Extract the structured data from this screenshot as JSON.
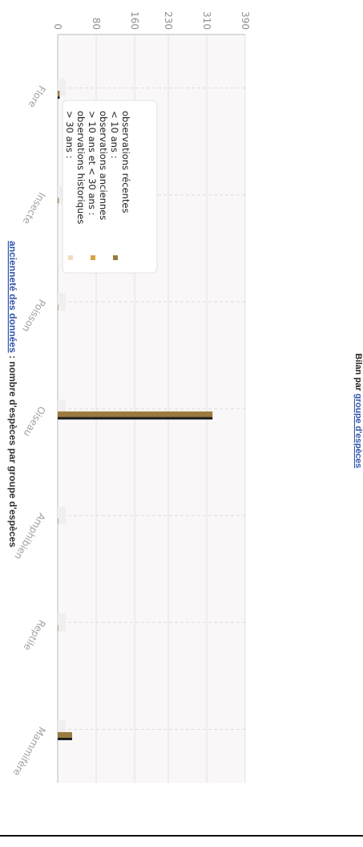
{
  "chart_title": {
    "link": "ancienneté des données",
    "rest": " : nombre d'espèces par groupe d'espèces"
  },
  "footer": {
    "prefix": "Bilan par ",
    "link": "groupe d'espèces"
  },
  "legend": [
    {
      "line1": "> 30 ans :",
      "line2": "observations historiques",
      "color": "#f2dcc0"
    },
    {
      "line1": "> 10 ans et < 30 ans :",
      "line2": "observations anciennes",
      "color": "#d9a441"
    },
    {
      "line1": "< 10 ans :",
      "line2": "observations récentes",
      "color": "#9b7a3e"
    }
  ],
  "chart_data": {
    "type": "bar",
    "orientation": "rotated 90° (page read sideways)",
    "categories": [
      "Flore",
      "Insecte",
      "Poisson",
      "Oiseau",
      "Amphibien",
      "Reptile",
      "Mammifère"
    ],
    "series": [
      {
        "name": "> 30 ans : observations historiques",
        "color": "#f2dcc0",
        "values": [
          0,
          0,
          0,
          0,
          0,
          0,
          0
        ]
      },
      {
        "name": "> 10 ans et < 30 ans : observations anciennes",
        "color": "#d9a441",
        "values": [
          0,
          0,
          0,
          0,
          0,
          0,
          0
        ]
      },
      {
        "name": "< 10 ans : observations récentes",
        "color": "#9b7a3e",
        "values": [
          4,
          2,
          1,
          322,
          1,
          1,
          30
        ]
      }
    ],
    "y_ticks": [
      0,
      80,
      160,
      230,
      310,
      390
    ],
    "ylim": [
      0,
      390
    ],
    "grid": true,
    "legend_position": "top-right"
  }
}
